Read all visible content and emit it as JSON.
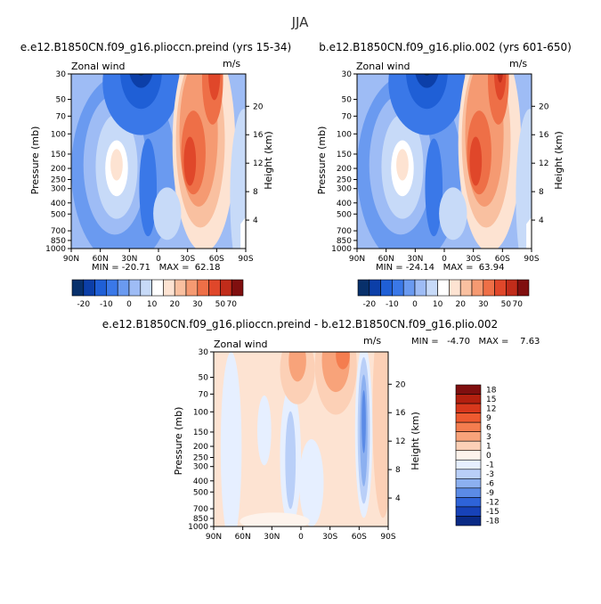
{
  "page_title": "JJA",
  "chart_data": [
    {
      "type": "heatmap",
      "title": "e.e12.B1850CN.f09_g16.plioccn.preind (yrs 15-34)",
      "subtitle": "Zonal wind",
      "units": "m/s",
      "ylabel": "Pressure (mb)",
      "ylabel_right": "Height (km)",
      "x_ticks": [
        "90N",
        "60N",
        "30N",
        "0",
        "30S",
        "60S",
        "90S"
      ],
      "y_ticks": [
        "30",
        "50",
        "70",
        "100",
        "150",
        "200",
        "250",
        "300",
        "400",
        "500",
        "700",
        "850",
        "1000"
      ],
      "height_ticks": [
        "20",
        "16",
        "12",
        "8",
        "4"
      ],
      "stats": "MIN = -20.71   MAX =  62.18",
      "colorbar_labels": [
        "-20",
        "-10",
        "0",
        "10",
        "20",
        "30",
        "50",
        "70"
      ],
      "features": [
        {
          "lat": -40,
          "p": 200,
          "value": 55
        },
        {
          "lat": -55,
          "p": 40,
          "value": 62
        },
        {
          "lat": 15,
          "p": 40,
          "value": -20
        },
        {
          "lat": 40,
          "p": 200,
          "value": 20
        }
      ]
    },
    {
      "type": "heatmap",
      "title": "b.e12.B1850CN.f09_g16.plio.002 (yrs 601-650)",
      "subtitle": "Zonal wind",
      "units": "m/s",
      "ylabel": "Pressure (mb)",
      "ylabel_right": "Height (km)",
      "x_ticks": [
        "90N",
        "60N",
        "30N",
        "0",
        "30S",
        "60S",
        "90S"
      ],
      "y_ticks": [
        "30",
        "50",
        "70",
        "100",
        "150",
        "200",
        "250",
        "300",
        "400",
        "500",
        "700",
        "850",
        "1000"
      ],
      "height_ticks": [
        "20",
        "16",
        "12",
        "8",
        "4"
      ],
      "stats": "MIN = -24.14   MAX =  63.94",
      "colorbar_labels": [
        "-20",
        "-10",
        "0",
        "10",
        "20",
        "30",
        "50",
        "70"
      ],
      "features": [
        {
          "lat": -40,
          "p": 200,
          "value": 57
        },
        {
          "lat": -55,
          "p": 40,
          "value": 64
        },
        {
          "lat": 15,
          "p": 40,
          "value": -24
        },
        {
          "lat": 40,
          "p": 200,
          "value": 22
        }
      ]
    },
    {
      "type": "heatmap",
      "title": "e.e12.B1850CN.f09_g16.plioccn.preind - b.e12.B1850CN.f09_g16.plio.002",
      "subtitle": "Zonal wind",
      "units": "m/s",
      "ylabel": "Pressure (mb)",
      "ylabel_right": "Height (km)",
      "x_ticks": [
        "90N",
        "60N",
        "30N",
        "0",
        "30S",
        "60S",
        "90S"
      ],
      "y_ticks": [
        "30",
        "50",
        "70",
        "100",
        "150",
        "200",
        "250",
        "300",
        "400",
        "500",
        "700",
        "850",
        "1000"
      ],
      "height_ticks": [
        "20",
        "16",
        "12",
        "8",
        "4"
      ],
      "stats": "MIN =   -4.70   MAX =    7.63",
      "colorbar_labels": [
        "18",
        "15",
        "12",
        "9",
        "6",
        "3",
        "1",
        "0",
        "-1",
        "-3",
        "-6",
        "-9",
        "-12",
        "-15",
        "-18"
      ],
      "features": [
        {
          "lat": -55,
          "p": 40,
          "value": 7.6
        },
        {
          "lat": -70,
          "p": 300,
          "value": -4.7
        },
        {
          "lat": 20,
          "p": 40,
          "value": 5
        },
        {
          "lat": 5,
          "p": 400,
          "value": -3
        }
      ]
    }
  ],
  "colors": {
    "colorbar_main": [
      "#08306b",
      "#0c3fa8",
      "#1f5fd6",
      "#3a78e8",
      "#6a9af0",
      "#9ebcf5",
      "#c7daf8",
      "#ffffff",
      "#fde3d2",
      "#f9c0a0",
      "#f59a72",
      "#ee6f47",
      "#e0472a",
      "#c12c1a",
      "#800f0f"
    ],
    "colorbar_diff": [
      "#800f0f",
      "#b3200f",
      "#d8381c",
      "#ee5a30",
      "#f47d4f",
      "#f8a37a",
      "#fcd0b6",
      "#fdf3ec",
      "#e6efff",
      "#b9cff8",
      "#8cb0f0",
      "#5b8be6",
      "#2e63d8",
      "#1742b8",
      "#0a2a85"
    ]
  }
}
